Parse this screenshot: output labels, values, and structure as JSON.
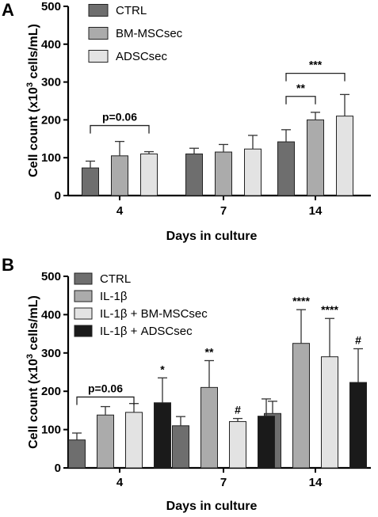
{
  "chart_data": [
    {
      "panel": "A",
      "type": "bar",
      "xlabel": "Days in culture",
      "ylabel": "Cell count (x10³ cells/mL)",
      "ylabel_main": "Cell count (x10",
      "ylabel_sup": "3",
      "ylabel_tail": " cells/mL)",
      "ylim": [
        0,
        500
      ],
      "yticks": [
        0,
        100,
        200,
        300,
        400,
        500
      ],
      "categories": [
        "4",
        "7",
        "14"
      ],
      "legend_position": "top-left",
      "series": [
        {
          "name": "CTRL",
          "color": "#6e6e6e",
          "values": [
            73,
            110,
            142
          ],
          "errors": [
            18,
            15,
            32
          ]
        },
        {
          "name": "BM-MSCsec",
          "color": "#ababab",
          "values": [
            105,
            115,
            200
          ],
          "errors": [
            38,
            20,
            20
          ]
        },
        {
          "name": "ADSCsec",
          "color": "#e3e3e3",
          "values": [
            110,
            123,
            210
          ],
          "errors": [
            6,
            36,
            57
          ]
        }
      ],
      "annotations": [
        {
          "type": "bracket",
          "category": 0,
          "from_series": 0,
          "to_series": 2,
          "y": 185,
          "label": "p=0.06"
        },
        {
          "type": "bracket",
          "category": 2,
          "from_series": 0,
          "to_series": 1,
          "y": 262,
          "label": "**"
        },
        {
          "type": "bracket",
          "category": 2,
          "from_series": 0,
          "to_series": 2,
          "y": 323,
          "label": "***"
        }
      ]
    },
    {
      "panel": "B",
      "type": "bar",
      "xlabel": "Days in culture",
      "ylabel": "Cell count (x10³ cells/mL)",
      "ylabel_main": "Cell count (x10",
      "ylabel_sup": "3",
      "ylabel_tail": " cells/mL)",
      "ylim": [
        0,
        500
      ],
      "yticks": [
        0,
        100,
        200,
        300,
        400,
        500
      ],
      "categories": [
        "4",
        "7",
        "14"
      ],
      "legend_position": "top-left",
      "series": [
        {
          "name": "CTRL",
          "color": "#6e6e6e",
          "values": [
            73,
            110,
            142
          ],
          "errors": [
            18,
            24,
            32
          ],
          "sig_labels": [
            "",
            "",
            ""
          ]
        },
        {
          "name": "IL-1β",
          "color": "#ababab",
          "values": [
            138,
            210,
            325
          ],
          "errors": [
            22,
            70,
            88
          ],
          "sig_labels": [
            "",
            "**",
            "****"
          ]
        },
        {
          "name": "IL-1β + BM-MSCsec",
          "color": "#e3e3e3",
          "values": [
            145,
            121,
            290
          ],
          "errors": [
            23,
            8,
            100
          ],
          "sig_labels": [
            "",
            "#",
            "****"
          ]
        },
        {
          "name": "IL-1β + ADSCsec",
          "color": "#1a1a1a",
          "values": [
            170,
            135,
            223
          ],
          "errors": [
            65,
            45,
            88
          ],
          "sig_labels": [
            "*",
            "",
            "#"
          ]
        }
      ],
      "annotations": [
        {
          "type": "bracket",
          "category": 0,
          "from_series": 0,
          "to_series": 2,
          "y": 185,
          "label": "p=0.06"
        }
      ]
    }
  ]
}
